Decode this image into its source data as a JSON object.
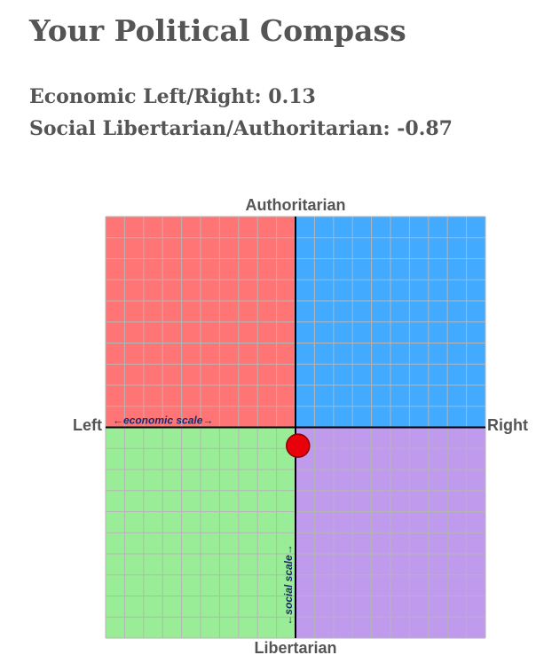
{
  "chart_data": {
    "type": "compass",
    "title": "Your Political Compass",
    "subtitles": [
      "Economic Left/Right: 0.13",
      "Social Libertarian/Authoritarian: -0.87"
    ],
    "labels": {
      "top": "Authoritarian",
      "bottom": "Libertarian",
      "left": "Left",
      "right": "Right"
    },
    "x_scale_label": "←economic scale→",
    "y_scale_label": "←social scale→",
    "x": [
      0.13
    ],
    "values": [
      -0.87
    ],
    "point_color": "#e8000a",
    "xlim": [
      -10,
      10
    ],
    "ylim": [
      -10,
      10
    ],
    "xticks": [
      -10,
      -9,
      -8,
      -7,
      -6,
      -5,
      -4,
      -3,
      -2,
      -1,
      0,
      1,
      2,
      3,
      4,
      5,
      6,
      7,
      8,
      9,
      10
    ],
    "yticks": [
      -10,
      -9,
      -8,
      -7,
      -6,
      -5,
      -4,
      -3,
      -2,
      -1,
      0,
      1,
      2,
      3,
      4,
      5,
      6,
      7,
      8,
      9,
      10
    ],
    "grid": true,
    "quadrant_colors": {
      "top_left": "#ff7575",
      "top_right": "#42aaff",
      "bottom_left": "#9aed97",
      "bottom_right": "#c09aec"
    }
  }
}
